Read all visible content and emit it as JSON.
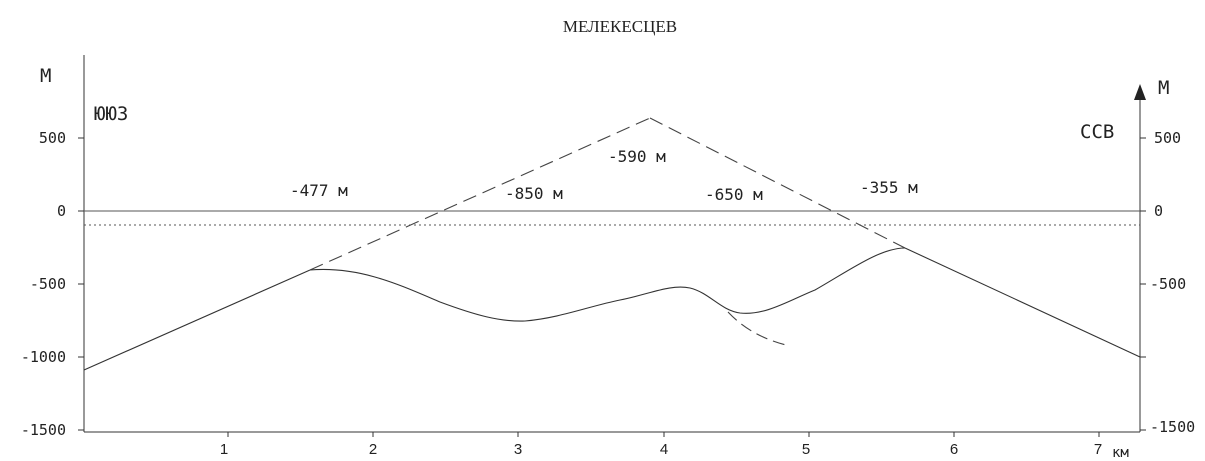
{
  "title": "МЕЛЕКЕСЦЕВ",
  "left_axis": {
    "unit": "М",
    "direction": "ЮЮЗ",
    "ticks": [
      "500",
      "0",
      "-500",
      "-1000",
      "-1500"
    ]
  },
  "right_axis": {
    "unit": "М",
    "direction": "ССВ",
    "ticks": [
      "500",
      "0",
      "-500",
      "-1500"
    ]
  },
  "x_axis": {
    "ticks": [
      "1",
      "2",
      "3",
      "4",
      "5",
      "6",
      "7"
    ],
    "unit": "км"
  },
  "depth_labels": [
    "-477 м",
    "-850 м",
    "-590 м",
    "-650 м",
    "-355 м"
  ],
  "colors": {
    "line": "#333333",
    "text": "#222222",
    "baseline": "#444444"
  }
}
